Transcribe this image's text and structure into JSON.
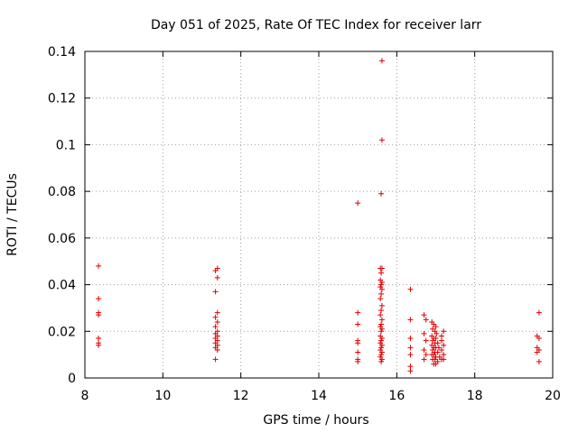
{
  "chart_data": {
    "type": "scatter",
    "title": "Day 051 of 2025, Rate Of TEC Index for receiver larr",
    "xlabel": "GPS time / hours",
    "ylabel": "ROTI / TECUs",
    "xlim": [
      8,
      20
    ],
    "ylim": [
      0,
      0.14
    ],
    "xticks": [
      8,
      10,
      12,
      14,
      16,
      18,
      20
    ],
    "yticks": [
      0,
      0.02,
      0.04,
      0.06,
      0.08,
      0.1,
      0.12,
      0.14
    ],
    "xtick_labels": [
      "8",
      "10",
      "12",
      "14",
      "16",
      "18",
      "20"
    ],
    "ytick_labels": [
      "0",
      "0.02",
      "0.04",
      "0.06",
      "0.08",
      "0.1",
      "0.12",
      "0.14"
    ],
    "grid": true,
    "marker": "+",
    "marker_color": "#e00000",
    "points": [
      [
        8.35,
        0.048
      ],
      [
        8.35,
        0.034
      ],
      [
        8.35,
        0.028
      ],
      [
        8.35,
        0.027
      ],
      [
        8.35,
        0.017
      ],
      [
        8.35,
        0.015
      ],
      [
        8.35,
        0.014
      ],
      [
        11.35,
        0.046
      ],
      [
        11.4,
        0.047
      ],
      [
        11.4,
        0.043
      ],
      [
        11.35,
        0.037
      ],
      [
        11.4,
        0.028
      ],
      [
        11.35,
        0.026
      ],
      [
        11.4,
        0.024
      ],
      [
        11.35,
        0.022
      ],
      [
        11.4,
        0.02
      ],
      [
        11.35,
        0.019
      ],
      [
        11.4,
        0.018
      ],
      [
        11.35,
        0.017
      ],
      [
        11.4,
        0.016
      ],
      [
        11.35,
        0.015
      ],
      [
        11.4,
        0.014
      ],
      [
        11.35,
        0.013
      ],
      [
        11.4,
        0.012
      ],
      [
        11.35,
        0.008
      ],
      [
        15.0,
        0.075
      ],
      [
        15.0,
        0.028
      ],
      [
        15.0,
        0.023
      ],
      [
        15.0,
        0.016
      ],
      [
        15.0,
        0.015
      ],
      [
        15.0,
        0.011
      ],
      [
        15.0,
        0.008
      ],
      [
        15.0,
        0.007
      ],
      [
        15.62,
        0.136
      ],
      [
        15.62,
        0.102
      ],
      [
        15.6,
        0.079
      ],
      [
        15.58,
        0.047
      ],
      [
        15.62,
        0.047
      ],
      [
        15.6,
        0.045
      ],
      [
        15.58,
        0.042
      ],
      [
        15.62,
        0.041
      ],
      [
        15.6,
        0.04
      ],
      [
        15.58,
        0.039
      ],
      [
        15.62,
        0.038
      ],
      [
        15.6,
        0.036
      ],
      [
        15.58,
        0.034
      ],
      [
        15.62,
        0.031
      ],
      [
        15.6,
        0.029
      ],
      [
        15.58,
        0.027
      ],
      [
        15.62,
        0.025
      ],
      [
        15.6,
        0.023
      ],
      [
        15.58,
        0.022
      ],
      [
        15.62,
        0.021
      ],
      [
        15.6,
        0.02
      ],
      [
        15.58,
        0.018
      ],
      [
        15.62,
        0.017
      ],
      [
        15.6,
        0.016
      ],
      [
        15.58,
        0.015
      ],
      [
        15.62,
        0.014
      ],
      [
        15.6,
        0.013
      ],
      [
        15.58,
        0.012
      ],
      [
        15.62,
        0.011
      ],
      [
        15.6,
        0.01
      ],
      [
        15.58,
        0.009
      ],
      [
        15.62,
        0.008
      ],
      [
        15.6,
        0.007
      ],
      [
        16.35,
        0.038
      ],
      [
        16.35,
        0.025
      ],
      [
        16.35,
        0.017
      ],
      [
        16.35,
        0.013
      ],
      [
        16.35,
        0.01
      ],
      [
        16.35,
        0.005
      ],
      [
        16.35,
        0.003
      ],
      [
        16.7,
        0.027
      ],
      [
        16.75,
        0.025
      ],
      [
        16.7,
        0.019
      ],
      [
        16.75,
        0.016
      ],
      [
        16.7,
        0.012
      ],
      [
        16.75,
        0.01
      ],
      [
        16.7,
        0.008
      ],
      [
        16.9,
        0.024
      ],
      [
        16.95,
        0.023
      ],
      [
        17.0,
        0.022
      ],
      [
        16.92,
        0.021
      ],
      [
        16.98,
        0.02
      ],
      [
        17.02,
        0.019
      ],
      [
        16.9,
        0.018
      ],
      [
        16.95,
        0.017
      ],
      [
        17.0,
        0.017
      ],
      [
        16.92,
        0.016
      ],
      [
        16.98,
        0.015
      ],
      [
        17.05,
        0.015
      ],
      [
        16.9,
        0.014
      ],
      [
        16.95,
        0.013
      ],
      [
        17.0,
        0.013
      ],
      [
        17.08,
        0.013
      ],
      [
        16.92,
        0.012
      ],
      [
        16.98,
        0.011
      ],
      [
        17.05,
        0.011
      ],
      [
        16.9,
        0.01
      ],
      [
        16.95,
        0.01
      ],
      [
        17.0,
        0.009
      ],
      [
        17.1,
        0.009
      ],
      [
        16.92,
        0.008
      ],
      [
        16.98,
        0.008
      ],
      [
        17.05,
        0.007
      ],
      [
        16.95,
        0.006
      ],
      [
        17.0,
        0.006
      ],
      [
        17.15,
        0.018
      ],
      [
        17.2,
        0.02
      ],
      [
        17.15,
        0.016
      ],
      [
        17.2,
        0.014
      ],
      [
        17.15,
        0.012
      ],
      [
        17.2,
        0.01
      ],
      [
        17.15,
        0.008
      ],
      [
        17.2,
        0.008
      ],
      [
        19.65,
        0.028
      ],
      [
        19.6,
        0.018
      ],
      [
        19.65,
        0.017
      ],
      [
        19.6,
        0.013
      ],
      [
        19.65,
        0.012
      ],
      [
        19.6,
        0.011
      ],
      [
        19.65,
        0.007
      ]
    ]
  }
}
